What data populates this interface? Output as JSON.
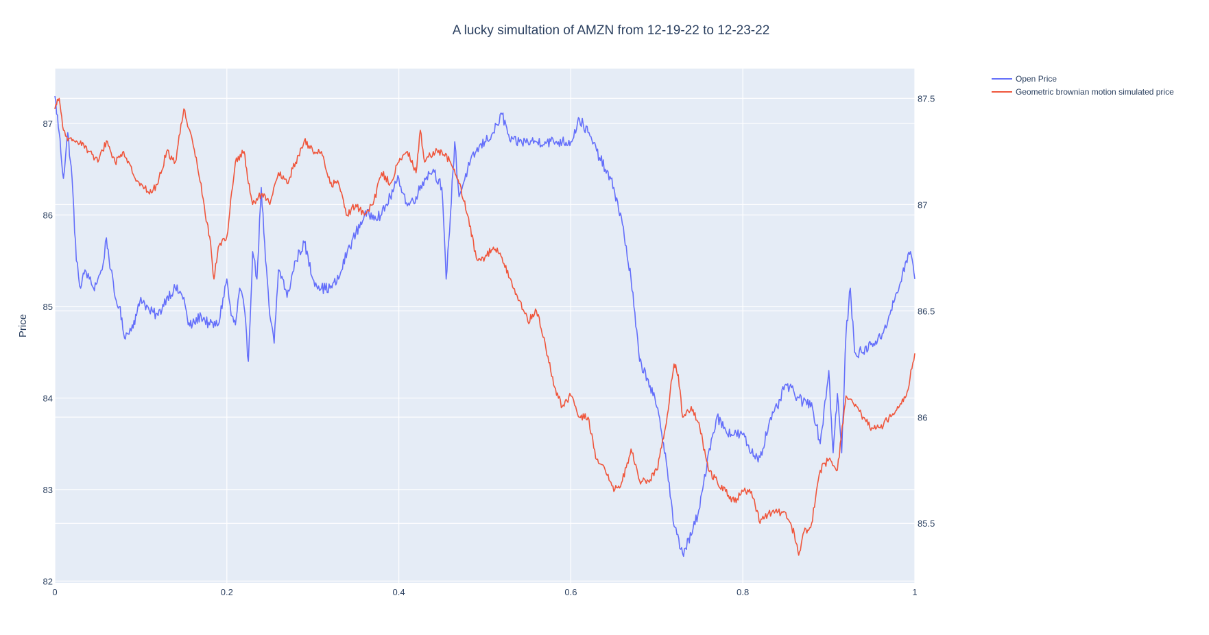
{
  "chart_data": {
    "type": "line",
    "title": "A lucky simultation of AMZN from 12-19-22 to 12-23-22",
    "xlabel": "",
    "ylabel": "Price",
    "y2label": "",
    "xlim": [
      0,
      1
    ],
    "ylim": [
      81.98,
      87.6
    ],
    "y2lim": [
      85.22,
      87.64
    ],
    "x_ticks": [
      0,
      0.2,
      0.4,
      0.6,
      0.8,
      1
    ],
    "x_tick_labels": [
      "0",
      "0.2",
      "0.4",
      "0.6",
      "0.8",
      "1"
    ],
    "y_ticks": [
      82,
      83,
      84,
      85,
      86,
      87
    ],
    "y_tick_labels": [
      "82",
      "83",
      "84",
      "85",
      "86",
      "87"
    ],
    "y2_ticks": [
      85.5,
      86,
      86.5,
      87,
      87.5
    ],
    "y2_tick_labels": [
      "85.5",
      "86",
      "86.5",
      "87",
      "87.5"
    ],
    "grid": true,
    "legend_position": "top-right, outside plot",
    "plot_background": "#e5ecf6",
    "series": [
      {
        "name": "Open Price",
        "axis": "left",
        "color": "#636efa",
        "x": [
          0,
          0.005,
          0.01,
          0.015,
          0.02,
          0.025,
          0.03,
          0.035,
          0.04,
          0.045,
          0.05,
          0.055,
          0.06,
          0.065,
          0.07,
          0.075,
          0.08,
          0.085,
          0.09,
          0.095,
          0.1,
          0.11,
          0.12,
          0.13,
          0.14,
          0.15,
          0.155,
          0.16,
          0.17,
          0.18,
          0.19,
          0.2,
          0.205,
          0.21,
          0.215,
          0.22,
          0.225,
          0.23,
          0.235,
          0.24,
          0.245,
          0.25,
          0.255,
          0.26,
          0.265,
          0.27,
          0.28,
          0.29,
          0.3,
          0.31,
          0.32,
          0.33,
          0.34,
          0.35,
          0.36,
          0.37,
          0.38,
          0.39,
          0.4,
          0.41,
          0.42,
          0.43,
          0.44,
          0.45,
          0.455,
          0.46,
          0.465,
          0.47,
          0.48,
          0.49,
          0.5,
          0.51,
          0.52,
          0.53,
          0.54,
          0.55,
          0.56,
          0.57,
          0.58,
          0.59,
          0.6,
          0.61,
          0.62,
          0.63,
          0.64,
          0.65,
          0.66,
          0.67,
          0.68,
          0.69,
          0.7,
          0.71,
          0.72,
          0.73,
          0.74,
          0.75,
          0.76,
          0.77,
          0.78,
          0.79,
          0.8,
          0.81,
          0.82,
          0.83,
          0.84,
          0.85,
          0.86,
          0.87,
          0.88,
          0.89,
          0.9,
          0.905,
          0.91,
          0.915,
          0.92,
          0.925,
          0.93,
          0.94,
          0.95,
          0.96,
          0.97,
          0.98,
          0.99,
          0.995,
          1
        ],
        "y": [
          87.3,
          86.9,
          86.4,
          86.9,
          86.4,
          85.5,
          85.2,
          85.4,
          85.3,
          85.2,
          85.3,
          85.4,
          85.75,
          85.4,
          85.1,
          85.0,
          84.7,
          84.7,
          84.8,
          84.9,
          85.1,
          84.95,
          84.9,
          85.1,
          85.2,
          85.1,
          84.8,
          84.8,
          84.9,
          84.8,
          84.8,
          85.3,
          84.9,
          84.8,
          85.2,
          85.0,
          84.4,
          85.6,
          85.3,
          86.3,
          85.5,
          84.9,
          84.6,
          85.4,
          85.3,
          85.1,
          85.5,
          85.7,
          85.3,
          85.2,
          85.2,
          85.3,
          85.6,
          85.8,
          86.0,
          86.0,
          86.0,
          86.2,
          86.4,
          86.1,
          86.2,
          86.4,
          86.5,
          86.3,
          85.3,
          86.0,
          86.8,
          86.2,
          86.5,
          86.7,
          86.8,
          86.9,
          87.1,
          86.8,
          86.8,
          86.8,
          86.8,
          86.8,
          86.8,
          86.8,
          86.8,
          87.05,
          86.9,
          86.7,
          86.5,
          86.3,
          85.9,
          85.3,
          84.4,
          84.2,
          83.9,
          83.4,
          82.6,
          82.3,
          82.5,
          82.8,
          83.4,
          83.8,
          83.65,
          83.6,
          83.6,
          83.4,
          83.35,
          83.7,
          83.9,
          84.15,
          84.05,
          83.95,
          83.95,
          83.5,
          84.3,
          83.4,
          84.05,
          83.4,
          84.7,
          85.2,
          84.5,
          84.5,
          84.6,
          84.65,
          84.9,
          85.15,
          85.5,
          85.6,
          85.3
        ]
      },
      {
        "name": "Geometric brownian motion simulated price",
        "axis": "right",
        "color": "#ef553b",
        "x": [
          0,
          0.005,
          0.01,
          0.015,
          0.02,
          0.025,
          0.03,
          0.04,
          0.05,
          0.06,
          0.07,
          0.08,
          0.09,
          0.1,
          0.11,
          0.12,
          0.13,
          0.14,
          0.15,
          0.16,
          0.17,
          0.175,
          0.18,
          0.185,
          0.19,
          0.2,
          0.21,
          0.22,
          0.225,
          0.23,
          0.24,
          0.25,
          0.26,
          0.27,
          0.28,
          0.29,
          0.3,
          0.31,
          0.32,
          0.33,
          0.34,
          0.35,
          0.36,
          0.37,
          0.38,
          0.39,
          0.4,
          0.41,
          0.42,
          0.425,
          0.43,
          0.44,
          0.45,
          0.46,
          0.47,
          0.48,
          0.49,
          0.5,
          0.51,
          0.52,
          0.53,
          0.54,
          0.55,
          0.56,
          0.57,
          0.58,
          0.59,
          0.6,
          0.61,
          0.62,
          0.63,
          0.64,
          0.65,
          0.66,
          0.67,
          0.68,
          0.69,
          0.7,
          0.71,
          0.72,
          0.725,
          0.73,
          0.74,
          0.75,
          0.76,
          0.77,
          0.78,
          0.79,
          0.8,
          0.81,
          0.82,
          0.83,
          0.84,
          0.85,
          0.86,
          0.865,
          0.87,
          0.88,
          0.89,
          0.9,
          0.91,
          0.92,
          0.93,
          0.94,
          0.95,
          0.96,
          0.97,
          0.98,
          0.99,
          1
        ],
        "y": [
          87.45,
          87.5,
          87.35,
          87.3,
          87.3,
          87.3,
          87.3,
          87.25,
          87.2,
          87.3,
          87.2,
          87.25,
          87.15,
          87.1,
          87.05,
          87.1,
          87.25,
          87.2,
          87.45,
          87.3,
          87.1,
          86.95,
          86.85,
          86.65,
          86.8,
          86.85,
          87.2,
          87.25,
          87.1,
          87.0,
          87.05,
          87.0,
          87.15,
          87.1,
          87.2,
          87.3,
          87.25,
          87.25,
          87.1,
          87.1,
          86.95,
          87.0,
          86.95,
          87.0,
          87.15,
          87.1,
          87.2,
          87.25,
          87.15,
          87.35,
          87.2,
          87.25,
          87.25,
          87.2,
          87.1,
          86.95,
          86.75,
          86.75,
          86.8,
          86.75,
          86.65,
          86.55,
          86.45,
          86.5,
          86.35,
          86.15,
          86.05,
          86.1,
          86.0,
          86.0,
          85.8,
          85.75,
          85.65,
          85.7,
          85.85,
          85.7,
          85.7,
          85.75,
          85.95,
          86.25,
          86.2,
          86.0,
          86.05,
          85.95,
          85.75,
          85.7,
          85.65,
          85.6,
          85.65,
          85.65,
          85.5,
          85.55,
          85.55,
          85.55,
          85.45,
          85.35,
          85.45,
          85.5,
          85.75,
          85.8,
          85.75,
          86.1,
          86.05,
          86.0,
          85.95,
          85.95,
          86.0,
          86.05,
          86.1,
          86.3
        ]
      }
    ]
  }
}
